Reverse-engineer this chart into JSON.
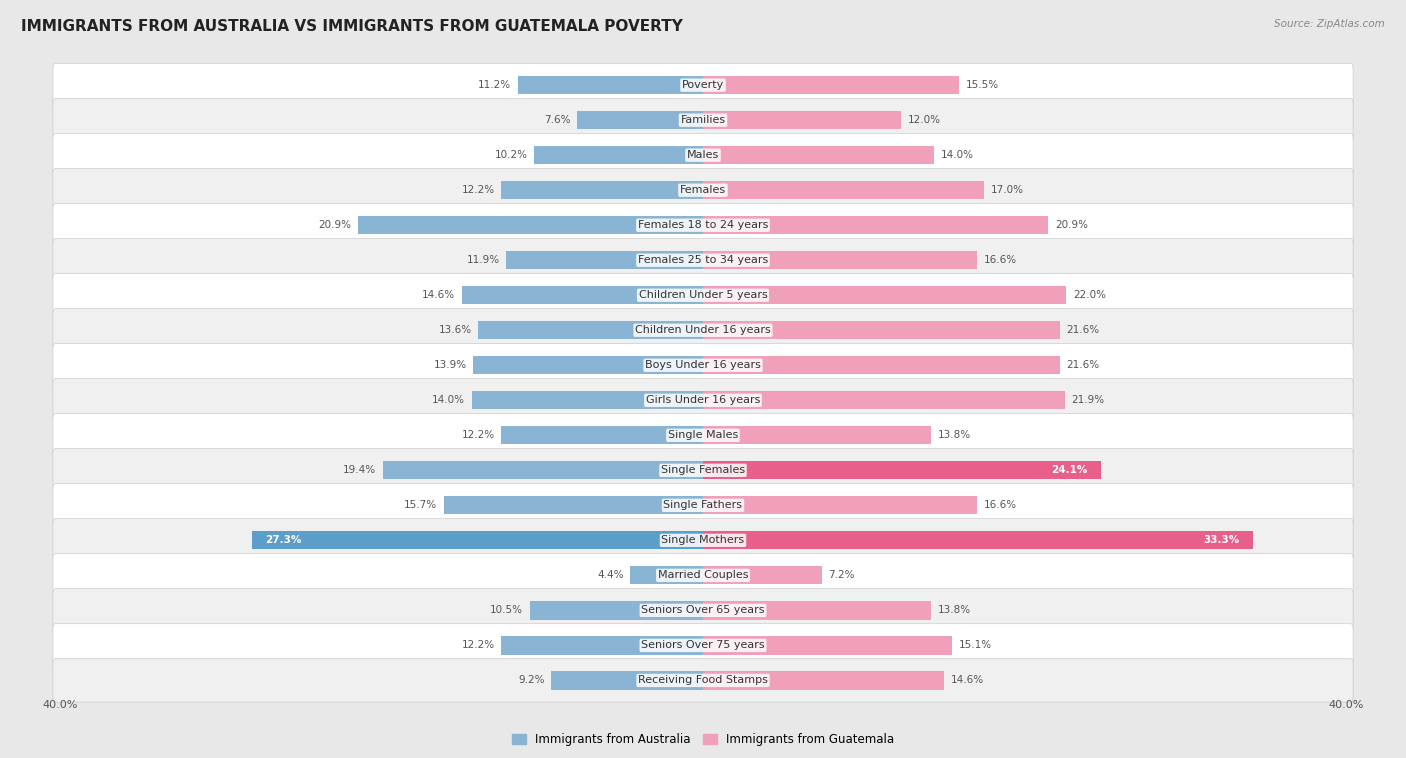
{
  "title": "IMMIGRANTS FROM AUSTRALIA VS IMMIGRANTS FROM GUATEMALA POVERTY",
  "source": "Source: ZipAtlas.com",
  "categories": [
    "Poverty",
    "Families",
    "Males",
    "Females",
    "Females 18 to 24 years",
    "Females 25 to 34 years",
    "Children Under 5 years",
    "Children Under 16 years",
    "Boys Under 16 years",
    "Girls Under 16 years",
    "Single Males",
    "Single Females",
    "Single Fathers",
    "Single Mothers",
    "Married Couples",
    "Seniors Over 65 years",
    "Seniors Over 75 years",
    "Receiving Food Stamps"
  ],
  "australia_values": [
    11.2,
    7.6,
    10.2,
    12.2,
    20.9,
    11.9,
    14.6,
    13.6,
    13.9,
    14.0,
    12.2,
    19.4,
    15.7,
    27.3,
    4.4,
    10.5,
    12.2,
    9.2
  ],
  "guatemala_values": [
    15.5,
    12.0,
    14.0,
    17.0,
    20.9,
    16.6,
    22.0,
    21.6,
    21.6,
    21.9,
    13.8,
    24.1,
    16.6,
    33.3,
    7.2,
    13.8,
    15.1,
    14.6
  ],
  "australia_color": "#8ab4d4",
  "australia_highlight_color": "#5b9ec9",
  "guatemala_color": "#f0a0b8",
  "guatemala_highlight_color": "#e8608a",
  "australia_label": "Immigrants from Australia",
  "guatemala_label": "Immigrants from Guatemala",
  "xlim": 40.0,
  "background_color": "#e8e8e8",
  "row_white_color": "#ffffff",
  "row_gray_color": "#f0f0f0",
  "title_fontsize": 11,
  "label_fontsize": 8,
  "value_fontsize": 7.5,
  "legend_fontsize": 8.5,
  "source_fontsize": 7.5,
  "highlight_rows_aus": [
    13
  ],
  "highlight_rows_guat": [
    11,
    13
  ]
}
